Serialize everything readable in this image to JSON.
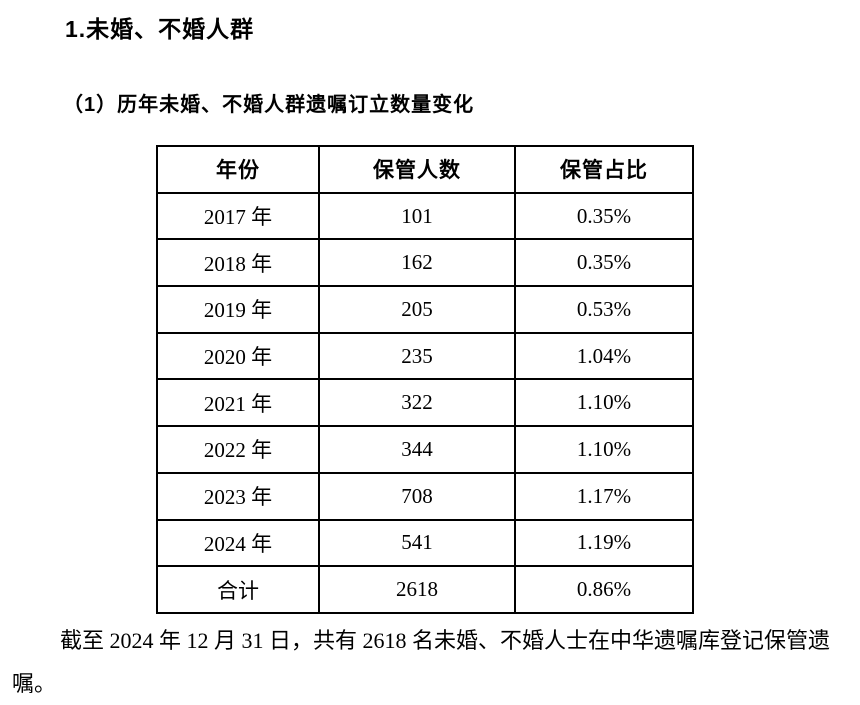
{
  "page": {
    "section_title": "1.未婚、不婚人群",
    "subsection_title": "（1）历年未婚、不婚人群遗嘱订立数量变化",
    "summary_text": "截至 2024 年 12 月 31 日，共有 2618 名未婚、不婚人士在中华遗嘱库登记保管遗嘱。",
    "text_color": "#000000",
    "background_color": "#ffffff",
    "table_border_color": "#000000"
  },
  "table": {
    "headers": [
      "年份",
      "保管人数",
      "保管占比"
    ],
    "rows": [
      [
        "2017 年",
        "101",
        "0.35%"
      ],
      [
        "2018 年",
        "162",
        "0.35%"
      ],
      [
        "2019 年",
        "205",
        "0.53%"
      ],
      [
        "2020 年",
        "235",
        "1.04%"
      ],
      [
        "2021 年",
        "322",
        "1.10%"
      ],
      [
        "2022 年",
        "344",
        "1.10%"
      ],
      [
        "2023 年",
        "708",
        "1.17%"
      ],
      [
        "2024 年",
        "541",
        "1.19%"
      ],
      [
        "合计",
        "2618",
        "0.86%"
      ]
    ]
  },
  "chart_data": {
    "type": "table",
    "title": "历年未婚、不婚人群遗嘱订立数量变化",
    "columns": [
      "年份",
      "保管人数",
      "保管占比"
    ],
    "years": [
      "2017",
      "2018",
      "2019",
      "2020",
      "2021",
      "2022",
      "2023",
      "2024"
    ],
    "keep_counts": [
      101,
      162,
      205,
      235,
      322,
      344,
      708,
      541
    ],
    "keep_share_pct": [
      0.35,
      0.35,
      0.53,
      1.04,
      1.1,
      1.1,
      1.17,
      1.19
    ],
    "total_row": {
      "label": "合计",
      "count": 2618,
      "share_pct": 0.86
    }
  }
}
